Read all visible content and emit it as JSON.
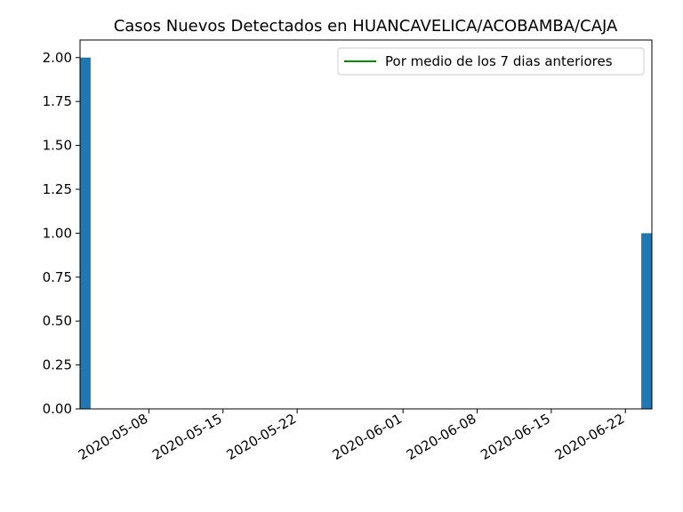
{
  "chart_data": {
    "type": "bar",
    "title": "Casos Nuevos Detectados en HUANCAVELICA/ACOBAMBA/CAJA",
    "xlabel": "",
    "ylabel": "",
    "bars": [
      {
        "x": "2020-05-02",
        "value": 2
      },
      {
        "x": "2020-06-24",
        "value": 1
      }
    ],
    "xlim": [
      "2020-05-02",
      "2020-06-24"
    ],
    "ylim": [
      0,
      2.1
    ],
    "x_ticks": [
      "2020-05-08",
      "2020-05-15",
      "2020-05-22",
      "2020-06-01",
      "2020-06-08",
      "2020-06-15",
      "2020-06-22"
    ],
    "y_ticks": [
      "0.00",
      "0.25",
      "0.50",
      "0.75",
      "1.00",
      "1.25",
      "1.50",
      "1.75",
      "2.00"
    ],
    "series": [
      {
        "name": "Por medio de los 7 dias anteriores",
        "type": "line",
        "color": "#008000",
        "values": []
      }
    ],
    "bar_color": "#1f77b4",
    "legend_position": "top-right",
    "grid": false
  }
}
